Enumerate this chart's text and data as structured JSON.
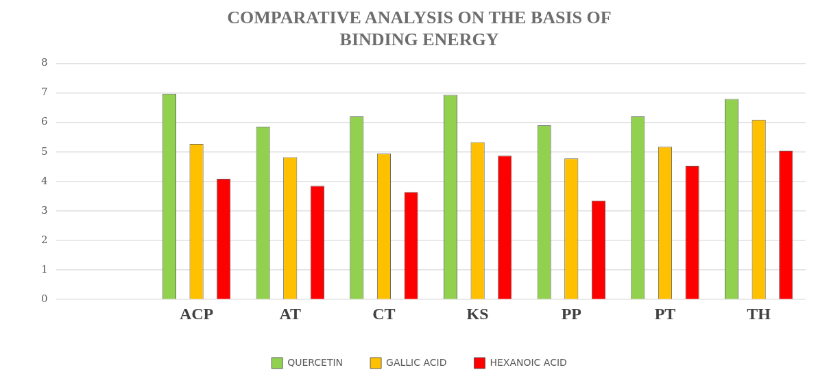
{
  "chart_data": {
    "type": "bar",
    "title": "COMPARATIVE ANALYSIS ON THE BASIS OF BINDING ENERGY",
    "categories": [
      null,
      "ACP",
      "AT",
      "CT",
      "KS",
      "PP",
      "PT",
      "TH"
    ],
    "series": [
      {
        "name": "QUERCETIN",
        "color": "#92d050",
        "values": [
          null,
          6.97,
          5.86,
          6.2,
          6.93,
          5.9,
          6.2,
          6.79
        ]
      },
      {
        "name": "GALLIC ACID",
        "color": "#ffc000",
        "values": [
          null,
          5.27,
          4.82,
          4.94,
          5.33,
          4.78,
          5.17,
          6.09
        ]
      },
      {
        "name": "HEXANOIC ACID",
        "color": "#ff0000",
        "values": [
          null,
          4.09,
          3.85,
          3.64,
          4.87,
          3.35,
          4.53,
          5.04
        ]
      }
    ],
    "ylim": [
      0,
      8
    ],
    "yticks": [
      0,
      1,
      2,
      3,
      4,
      5,
      6,
      7,
      8
    ],
    "grid": "y",
    "legend": "bottom"
  }
}
